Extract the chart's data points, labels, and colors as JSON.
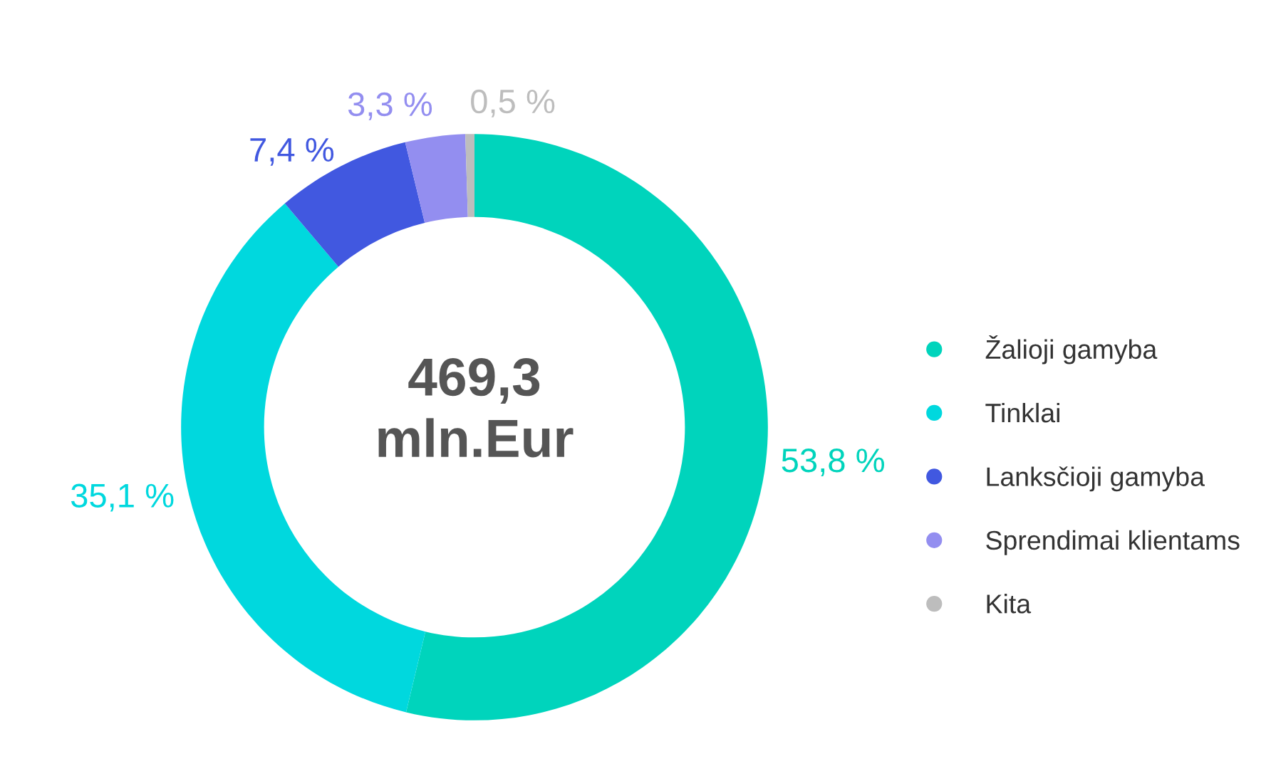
{
  "chart_data": {
    "type": "donut",
    "categories": [
      "Žalioji gamyba",
      "Tinklai",
      "Lanksčioji gamyba",
      "Sprendimai klientams",
      "Kita"
    ],
    "values": [
      53.8,
      35.1,
      7.4,
      3.3,
      0.5
    ],
    "value_labels": [
      "53,8 %",
      "35,1 %",
      "7,4 %",
      "3,3 %",
      "0,5 %"
    ],
    "colors": [
      "#00d4bc",
      "#00d8de",
      "#4158e0",
      "#938ef0",
      "#bdbdbd"
    ],
    "annotations": [
      "469,3\nmln.Eur"
    ],
    "legend": "right"
  }
}
